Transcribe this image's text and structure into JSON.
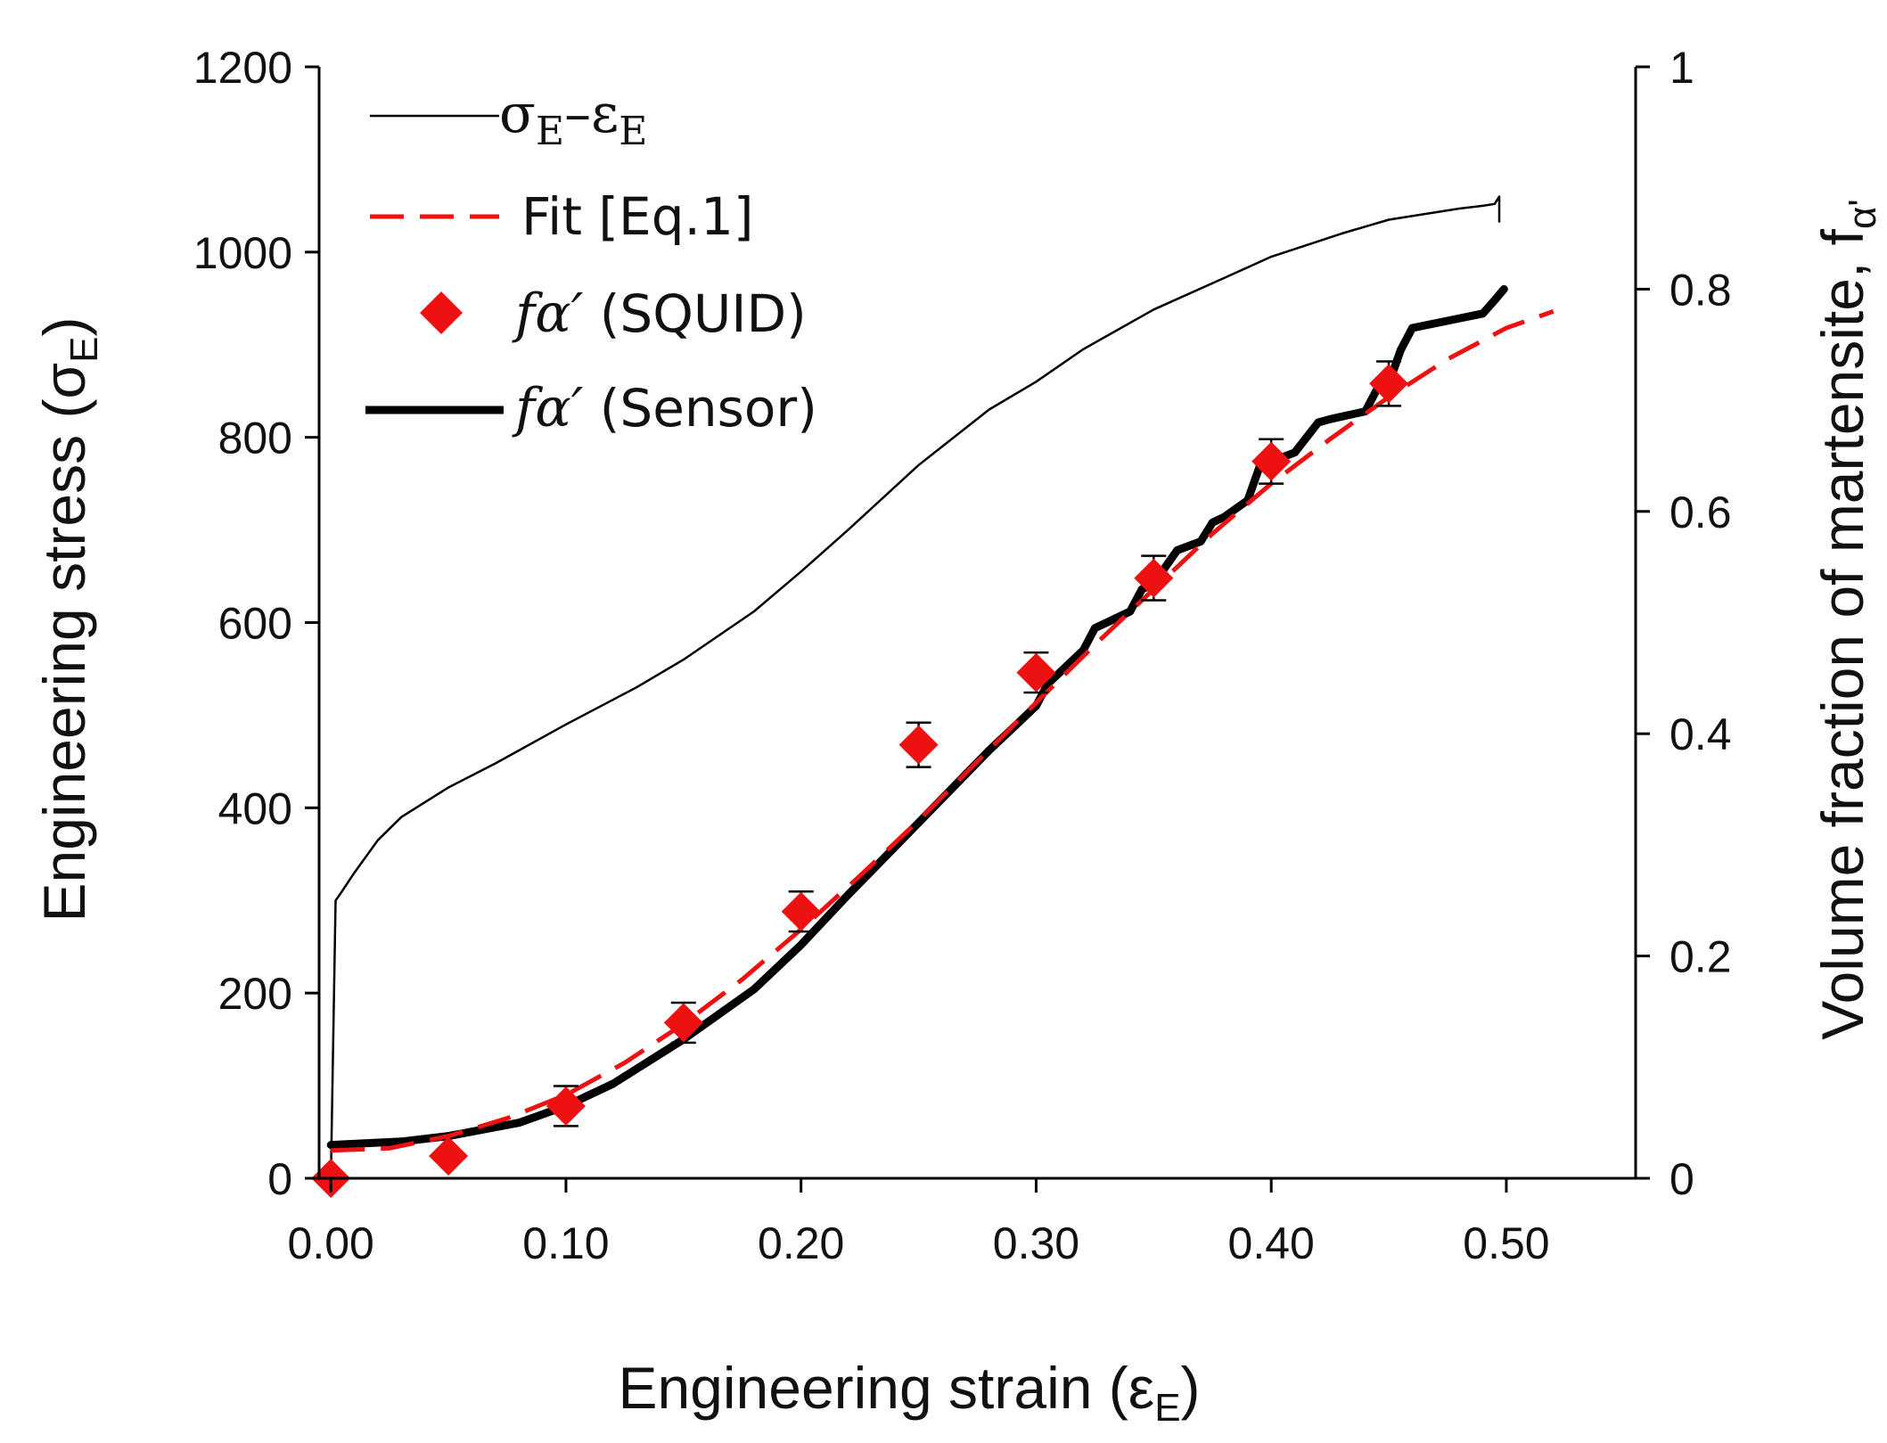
{
  "chart_data": {
    "type": "line",
    "x": {
      "label": "Engineering strain (ε",
      "label_sub": "E",
      "label_end": ")",
      "range": [
        -0.005,
        0.555
      ],
      "ticks": [
        0.0,
        0.1,
        0.2,
        0.3,
        0.4,
        0.5
      ],
      "tick_labels": [
        "0.00",
        "0.10",
        "0.20",
        "0.30",
        "0.40",
        "0.50"
      ]
    },
    "y_left": {
      "label": "Engineering stress (σ",
      "label_sub": "E",
      "label_end": ")",
      "range": [
        0,
        1200
      ],
      "ticks": [
        0,
        200,
        400,
        600,
        800,
        1000,
        1200
      ],
      "tick_labels": [
        "0",
        "200",
        "400",
        "600",
        "800",
        "1000",
        "1200"
      ]
    },
    "y_right": {
      "label": "Volume fraction of martensite, f",
      "label_sub": "α'",
      "range": [
        0,
        1
      ],
      "ticks": [
        0,
        0.2,
        0.4,
        0.6,
        0.8,
        1
      ],
      "tick_labels": [
        "0",
        "0.2",
        "0.4",
        "0.6",
        "0.8",
        "1"
      ]
    },
    "legend": {
      "position": "top-left",
      "entries": [
        {
          "key": "stress",
          "sym": "σ",
          "sub": "E",
          "dash": "–",
          "sym2": "ε",
          "sub2": "E"
        },
        {
          "key": "fit",
          "label": "Fit [Eq.1]"
        },
        {
          "key": "squid",
          "sym": "fα′",
          "label": " (SQUID)"
        },
        {
          "key": "sensor",
          "sym": "fα′",
          "label": " (Sensor)"
        }
      ]
    },
    "series": [
      {
        "name": "stress",
        "axis": "left",
        "color": "#000000",
        "style": "thin-solid",
        "x": [
          0,
          0.002,
          0.004,
          0.01,
          0.02,
          0.03,
          0.05,
          0.07,
          0.1,
          0.13,
          0.15,
          0.18,
          0.2,
          0.22,
          0.25,
          0.28,
          0.3,
          0.32,
          0.35,
          0.38,
          0.4,
          0.43,
          0.45,
          0.48,
          0.49,
          0.495,
          0.497,
          0.497
        ],
        "y": [
          0,
          300,
          307,
          330,
          365,
          390,
          422,
          448,
          490,
          530,
          560,
          612,
          655,
          700,
          770,
          830,
          860,
          895,
          938,
          972,
          995,
          1020,
          1035,
          1047,
          1050,
          1052,
          1060,
          1032
        ]
      },
      {
        "name": "fit",
        "axis": "right",
        "color": "#ee1111",
        "style": "dashed",
        "x": [
          0.0,
          0.025,
          0.05,
          0.075,
          0.1,
          0.125,
          0.15,
          0.175,
          0.2,
          0.225,
          0.25,
          0.275,
          0.3,
          0.325,
          0.35,
          0.375,
          0.4,
          0.425,
          0.45,
          0.475,
          0.5,
          0.52
        ],
        "y": [
          0.025,
          0.027,
          0.038,
          0.054,
          0.075,
          0.104,
          0.139,
          0.179,
          0.224,
          0.272,
          0.322,
          0.375,
          0.428,
          0.48,
          0.53,
          0.58,
          0.625,
          0.665,
          0.703,
          0.737,
          0.765,
          0.78
        ]
      },
      {
        "name": "squid",
        "axis": "right",
        "color": "#ee1111",
        "style": "diamond",
        "x": [
          0.0,
          0.05,
          0.1,
          0.15,
          0.2,
          0.25,
          0.3,
          0.35,
          0.4,
          0.45
        ],
        "y": [
          0.0,
          0.02,
          0.065,
          0.14,
          0.24,
          0.39,
          0.455,
          0.54,
          0.645,
          0.715
        ],
        "err": [
          0,
          0,
          0.018,
          0.018,
          0.018,
          0.02,
          0.018,
          0.02,
          0.02,
          0.02
        ]
      },
      {
        "name": "sensor",
        "axis": "right",
        "color": "#000000",
        "style": "thick-solid",
        "x": [
          0.0,
          0.03,
          0.05,
          0.08,
          0.1,
          0.12,
          0.15,
          0.18,
          0.2,
          0.22,
          0.25,
          0.28,
          0.29,
          0.3,
          0.305,
          0.31,
          0.32,
          0.325,
          0.33,
          0.34,
          0.345,
          0.35,
          0.355,
          0.36,
          0.37,
          0.375,
          0.38,
          0.39,
          0.395,
          0.4,
          0.41,
          0.42,
          0.425,
          0.44,
          0.445,
          0.45,
          0.455,
          0.46,
          0.49,
          0.495,
          0.499
        ],
        "y": [
          0.03,
          0.033,
          0.038,
          0.05,
          0.065,
          0.085,
          0.125,
          0.17,
          0.21,
          0.255,
          0.32,
          0.385,
          0.405,
          0.425,
          0.445,
          0.455,
          0.475,
          0.495,
          0.5,
          0.51,
          0.53,
          0.535,
          0.55,
          0.565,
          0.573,
          0.59,
          0.595,
          0.61,
          0.64,
          0.645,
          0.653,
          0.68,
          0.683,
          0.69,
          0.71,
          0.715,
          0.745,
          0.765,
          0.778,
          0.79,
          0.8
        ]
      }
    ]
  }
}
